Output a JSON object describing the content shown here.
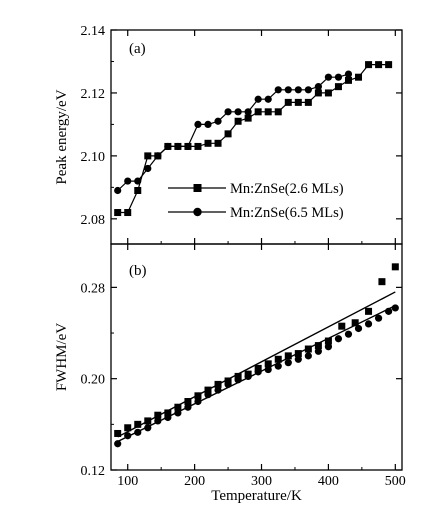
{
  "chart_data": [
    {
      "type": "line",
      "panel_label": "(a)",
      "ylabel": "Peak energy/eV",
      "xlim": [
        75,
        510
      ],
      "ylim": [
        2.072,
        2.14
      ],
      "yticks": [
        2.08,
        2.1,
        2.12,
        2.14
      ],
      "ytick_labels": [
        "2.08",
        "2.10",
        "2.12",
        "2.14"
      ],
      "legend_position": "lower-right",
      "series": [
        {
          "name": "Mn:ZnSe(2.6 MLs)",
          "marker": "square",
          "x": [
            85,
            100,
            115,
            130,
            145,
            160,
            175,
            190,
            205,
            220,
            235,
            250,
            265,
            280,
            295,
            310,
            325,
            340,
            355,
            370,
            385,
            400,
            415,
            430,
            445,
            460,
            475,
            490
          ],
          "y": [
            2.082,
            2.082,
            2.089,
            2.1,
            2.1,
            2.103,
            2.103,
            2.103,
            2.103,
            2.104,
            2.104,
            2.107,
            2.111,
            2.112,
            2.114,
            2.114,
            2.114,
            2.117,
            2.117,
            2.117,
            2.12,
            2.12,
            2.122,
            2.124,
            2.125,
            2.129,
            2.129,
            2.129
          ]
        },
        {
          "name": "Mn:ZnSe(6.5 MLs)",
          "marker": "circle",
          "x": [
            85,
            100,
            115,
            130,
            145,
            160,
            175,
            190,
            205,
            220,
            235,
            250,
            265,
            280,
            295,
            310,
            325,
            340,
            355,
            370,
            385,
            400,
            415,
            430
          ],
          "y": [
            2.089,
            2.092,
            2.092,
            2.096,
            2.1,
            2.103,
            2.103,
            2.103,
            2.11,
            2.11,
            2.111,
            2.114,
            2.114,
            2.114,
            2.118,
            2.118,
            2.121,
            2.121,
            2.121,
            2.121,
            2.122,
            2.125,
            2.125,
            2.126
          ]
        }
      ]
    },
    {
      "type": "scatter",
      "panel_label": "(b)",
      "xlabel": "Temperature/K",
      "ylabel": "FWHM/eV",
      "xlim": [
        75,
        510
      ],
      "ylim": [
        0.12,
        0.318
      ],
      "xticks": [
        100,
        200,
        300,
        400,
        500
      ],
      "xtick_labels": [
        "100",
        "200",
        "300",
        "400",
        "500"
      ],
      "yticks": [
        0.12,
        0.2,
        0.28
      ],
      "ytick_labels": [
        "0.12",
        "0.20",
        "0.28"
      ],
      "series": [
        {
          "name": "Mn:ZnSe(2.6 MLs)",
          "marker": "square",
          "x": [
            85,
            100,
            115,
            130,
            145,
            160,
            175,
            190,
            205,
            220,
            235,
            250,
            265,
            280,
            295,
            310,
            325,
            340,
            355,
            370,
            385,
            400,
            420,
            440,
            460,
            480,
            500
          ],
          "y": [
            0.152,
            0.157,
            0.16,
            0.163,
            0.168,
            0.17,
            0.175,
            0.18,
            0.185,
            0.19,
            0.195,
            0.198,
            0.202,
            0.204,
            0.209,
            0.213,
            0.217,
            0.22,
            0.222,
            0.226,
            0.229,
            0.233,
            0.246,
            0.249,
            0.259,
            0.285,
            0.298
          ],
          "fit": {
            "x": [
              85,
              500
            ],
            "y": [
              0.149,
              0.276
            ]
          }
        },
        {
          "name": "Mn:ZnSe(6.5 MLs)",
          "marker": "circle",
          "x": [
            85,
            100,
            115,
            130,
            145,
            160,
            175,
            190,
            205,
            220,
            235,
            250,
            265,
            280,
            295,
            310,
            325,
            340,
            355,
            370,
            385,
            400,
            415,
            430,
            445,
            460,
            475,
            490,
            500
          ],
          "y": [
            0.143,
            0.15,
            0.153,
            0.157,
            0.163,
            0.166,
            0.17,
            0.175,
            0.18,
            0.186,
            0.19,
            0.195,
            0.199,
            0.202,
            0.206,
            0.208,
            0.211,
            0.214,
            0.217,
            0.22,
            0.224,
            0.228,
            0.235,
            0.239,
            0.244,
            0.248,
            0.253,
            0.259,
            0.262
          ],
          "fit": {
            "x": [
              85,
              500
            ],
            "y": [
              0.145,
              0.264
            ]
          }
        }
      ]
    }
  ]
}
